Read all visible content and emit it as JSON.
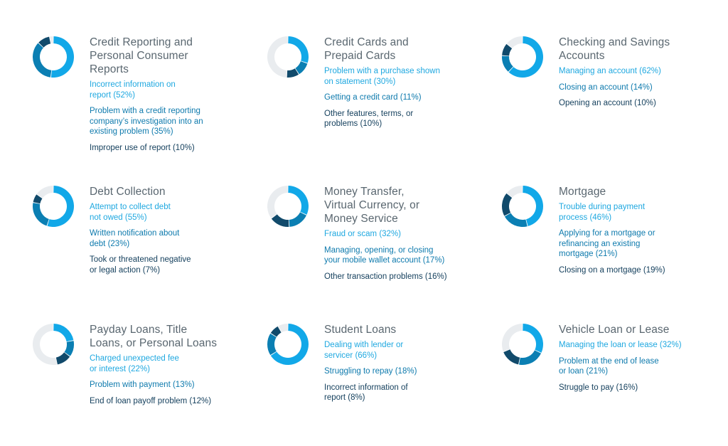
{
  "colors": {
    "segment_1": "#12a8e8",
    "segment_2": "#0b7fb3",
    "segment_3": "#114a6b",
    "remainder": "#e9ecef"
  },
  "chart_data": [
    {
      "type": "pie",
      "title": "Credit Reporting and Personal Consumer Reports",
      "title_lines": [
        "Credit Reporting and",
        "Personal Consumer",
        "Reports"
      ],
      "items": [
        {
          "label_lines": [
            "Incorrect information on",
            "report (52%)"
          ],
          "value": 52
        },
        {
          "label_lines": [
            "Problem with a credit reporting",
            "company’s investigation into an",
            "existing problem (35%)"
          ],
          "value": 35
        },
        {
          "label_lines": [
            "Improper use of report (10%)"
          ],
          "value": 10
        }
      ]
    },
    {
      "type": "pie",
      "title": "Credit Cards and Prepaid Cards",
      "title_lines": [
        "Credit Cards and",
        "Prepaid Cards"
      ],
      "items": [
        {
          "label_lines": [
            "Problem with a purchase shown",
            "on statement (30%)"
          ],
          "value": 30
        },
        {
          "label_lines": [
            "Getting a credit card (11%)"
          ],
          "value": 11
        },
        {
          "label_lines": [
            "Other features, terms, or",
            "problems (10%)"
          ],
          "value": 10
        }
      ]
    },
    {
      "type": "pie",
      "title": "Checking and Savings Accounts",
      "title_lines": [
        "Checking and Savings",
        "Accounts"
      ],
      "items": [
        {
          "label_lines": [
            "Managing an account (62%)"
          ],
          "value": 62
        },
        {
          "label_lines": [
            "Closing an account (14%)"
          ],
          "value": 14
        },
        {
          "label_lines": [
            "Opening an account (10%)"
          ],
          "value": 10
        }
      ]
    },
    {
      "type": "pie",
      "title": "Debt Collection",
      "title_lines": [
        "Debt Collection"
      ],
      "items": [
        {
          "label_lines": [
            "Attempt to collect debt",
            "not owed (55%)"
          ],
          "value": 55
        },
        {
          "label_lines": [
            "Written notification about",
            "debt (23%)"
          ],
          "value": 23
        },
        {
          "label_lines": [
            "Took or threatened negative",
            "or legal action (7%)"
          ],
          "value": 7
        }
      ]
    },
    {
      "type": "pie",
      "title": "Money Transfer, Virtual Currency, or Money Service",
      "title_lines": [
        "Money Transfer,",
        "Virtual Currency, or",
        "Money Service"
      ],
      "items": [
        {
          "label_lines": [
            "Fraud or scam (32%)"
          ],
          "value": 32
        },
        {
          "label_lines": [
            "Managing, opening, or closing",
            "your mobile wallet account (17%)"
          ],
          "value": 17
        },
        {
          "label_lines": [
            "Other transaction problems (16%)"
          ],
          "value": 16
        }
      ]
    },
    {
      "type": "pie",
      "title": "Mortgage",
      "title_lines": [
        "Mortgage"
      ],
      "items": [
        {
          "label_lines": [
            "Trouble during payment",
            "process (46%)"
          ],
          "value": 46
        },
        {
          "label_lines": [
            "Applying for a mortgage or",
            "refinancing an existing",
            "mortgage (21%)"
          ],
          "value": 21
        },
        {
          "label_lines": [
            "Closing on a mortgage (19%)"
          ],
          "value": 19
        }
      ]
    },
    {
      "type": "pie",
      "title": "Payday Loans, Title Loans, or Personal Loans",
      "title_lines": [
        "Payday Loans, Title",
        "Loans, or Personal Loans"
      ],
      "items": [
        {
          "label_lines": [
            "Charged unexpected fee",
            "or interest (22%)"
          ],
          "value": 22
        },
        {
          "label_lines": [
            "Problem with payment (13%)"
          ],
          "value": 13
        },
        {
          "label_lines": [
            "End of loan payoff problem (12%)"
          ],
          "value": 12
        }
      ]
    },
    {
      "type": "pie",
      "title": "Student Loans",
      "title_lines": [
        "Student Loans"
      ],
      "items": [
        {
          "label_lines": [
            "Dealing with lender or",
            "servicer (66%)"
          ],
          "value": 66
        },
        {
          "label_lines": [
            "Struggling to repay (18%)"
          ],
          "value": 18
        },
        {
          "label_lines": [
            "Incorrect information of",
            "report (8%)"
          ],
          "value": 8
        }
      ]
    },
    {
      "type": "pie",
      "title": "Vehicle Loan or Lease",
      "title_lines": [
        "Vehicle Loan or Lease"
      ],
      "items": [
        {
          "label_lines": [
            "Managing the loan or lease (32%)"
          ],
          "value": 32
        },
        {
          "label_lines": [
            "Problem at the end of lease",
            "or loan (21%)"
          ],
          "value": 21
        },
        {
          "label_lines": [
            "Struggle to pay (16%)"
          ],
          "value": 16
        }
      ]
    }
  ]
}
